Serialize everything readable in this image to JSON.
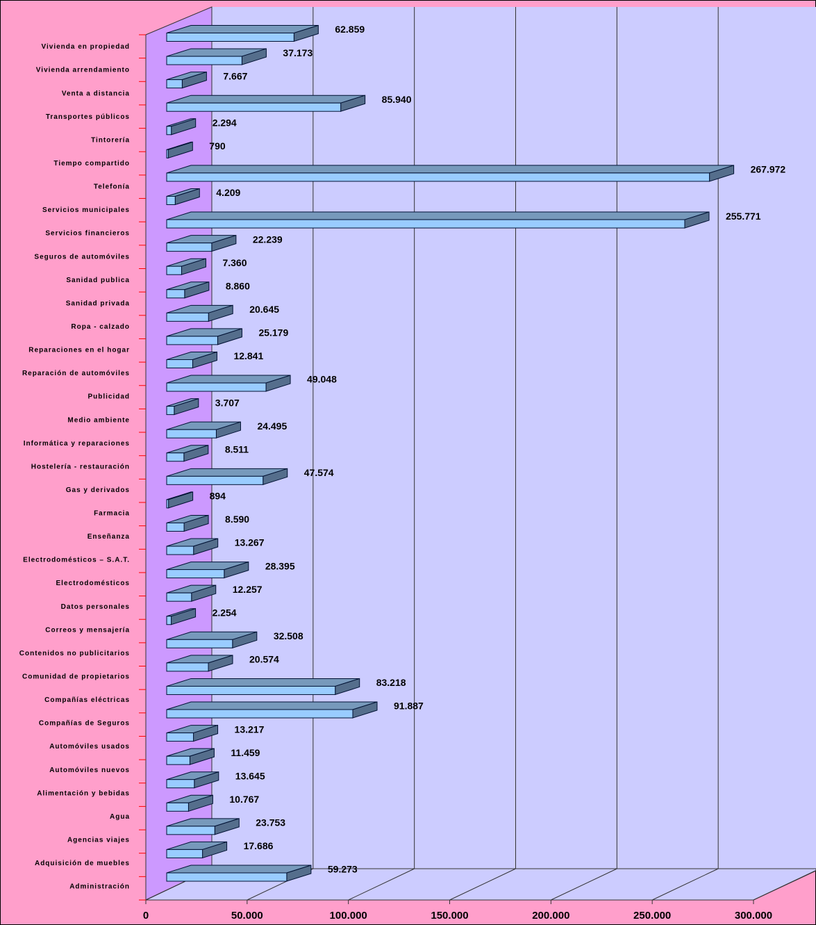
{
  "chart_data": {
    "type": "bar",
    "orientation": "horizontal",
    "categories": [
      "Vivienda en propiedad",
      "Vivienda arrendamiento",
      "Venta a distancia",
      "Transportes públicos",
      "Tintorería",
      "Tiempo compartido",
      "Telefonía",
      "Servicios municipales",
      "Servicios financieros",
      "Seguros de automóviles",
      "Sanidad publica",
      "Sanidad privada",
      "Ropa - calzado",
      "Reparaciones en el hogar",
      "Reparación de automóviles",
      "Publicidad",
      "Medio ambiente",
      "Informática y reparaciones",
      "Hostelería - restauración",
      "Gas y derivados",
      "Farmacia",
      "Enseñanza",
      "Electrodomésticos – S.A.T.",
      "Electrodomésticos",
      "Datos personales",
      "Correos y mensajería",
      "Contenidos no publicitarios",
      "Comunidad de propietarios",
      "Compañías eléctricas",
      "Compañías de Seguros",
      "Automóviles usados",
      "Automóviles nuevos",
      "Alimentación y bebidas",
      "Agua",
      "Agencias viajes",
      "Adquisición de muebles",
      "Administración"
    ],
    "values": [
      62859,
      37173,
      7667,
      85940,
      2294,
      790,
      267972,
      4209,
      255771,
      22239,
      7360,
      8860,
      20645,
      25179,
      12841,
      49048,
      3707,
      24495,
      8511,
      47574,
      894,
      8590,
      13267,
      28395,
      12257,
      2254,
      32508,
      20574,
      83218,
      91887,
      13217,
      11459,
      13645,
      10767,
      23753,
      17686,
      59273
    ],
    "value_labels": [
      "62.859",
      "37.173",
      "7.667",
      "85.940",
      "2.294",
      "790",
      "267.972",
      "4.209",
      "255.771",
      "22.239",
      "7.360",
      "8.860",
      "20.645",
      "25.179",
      "12.841",
      "49.048",
      "3.707",
      "24.495",
      "8.511",
      "47.574",
      "894",
      "8.590",
      "13.267",
      "28.395",
      "12.257",
      "2.254",
      "32.508",
      "20.574",
      "83.218",
      "91.887",
      "13.217",
      "11.459",
      "13.645",
      "10.767",
      "23.753",
      "17.686",
      "59.273"
    ],
    "color": "#99ccff",
    "xlim": [
      0,
      300000
    ],
    "xticks": [
      0,
      {
        "value": 50000,
        "label": "50.000"
      },
      {
        "value": 100000,
        "label": "100.000"
      },
      {
        "value": 150000,
        "label": "150.000"
      },
      {
        "value": 200000,
        "label": "200.000"
      },
      {
        "value": 250000,
        "label": "250.000"
      },
      {
        "value": 300000,
        "label": "300.000"
      }
    ],
    "grid": true
  }
}
